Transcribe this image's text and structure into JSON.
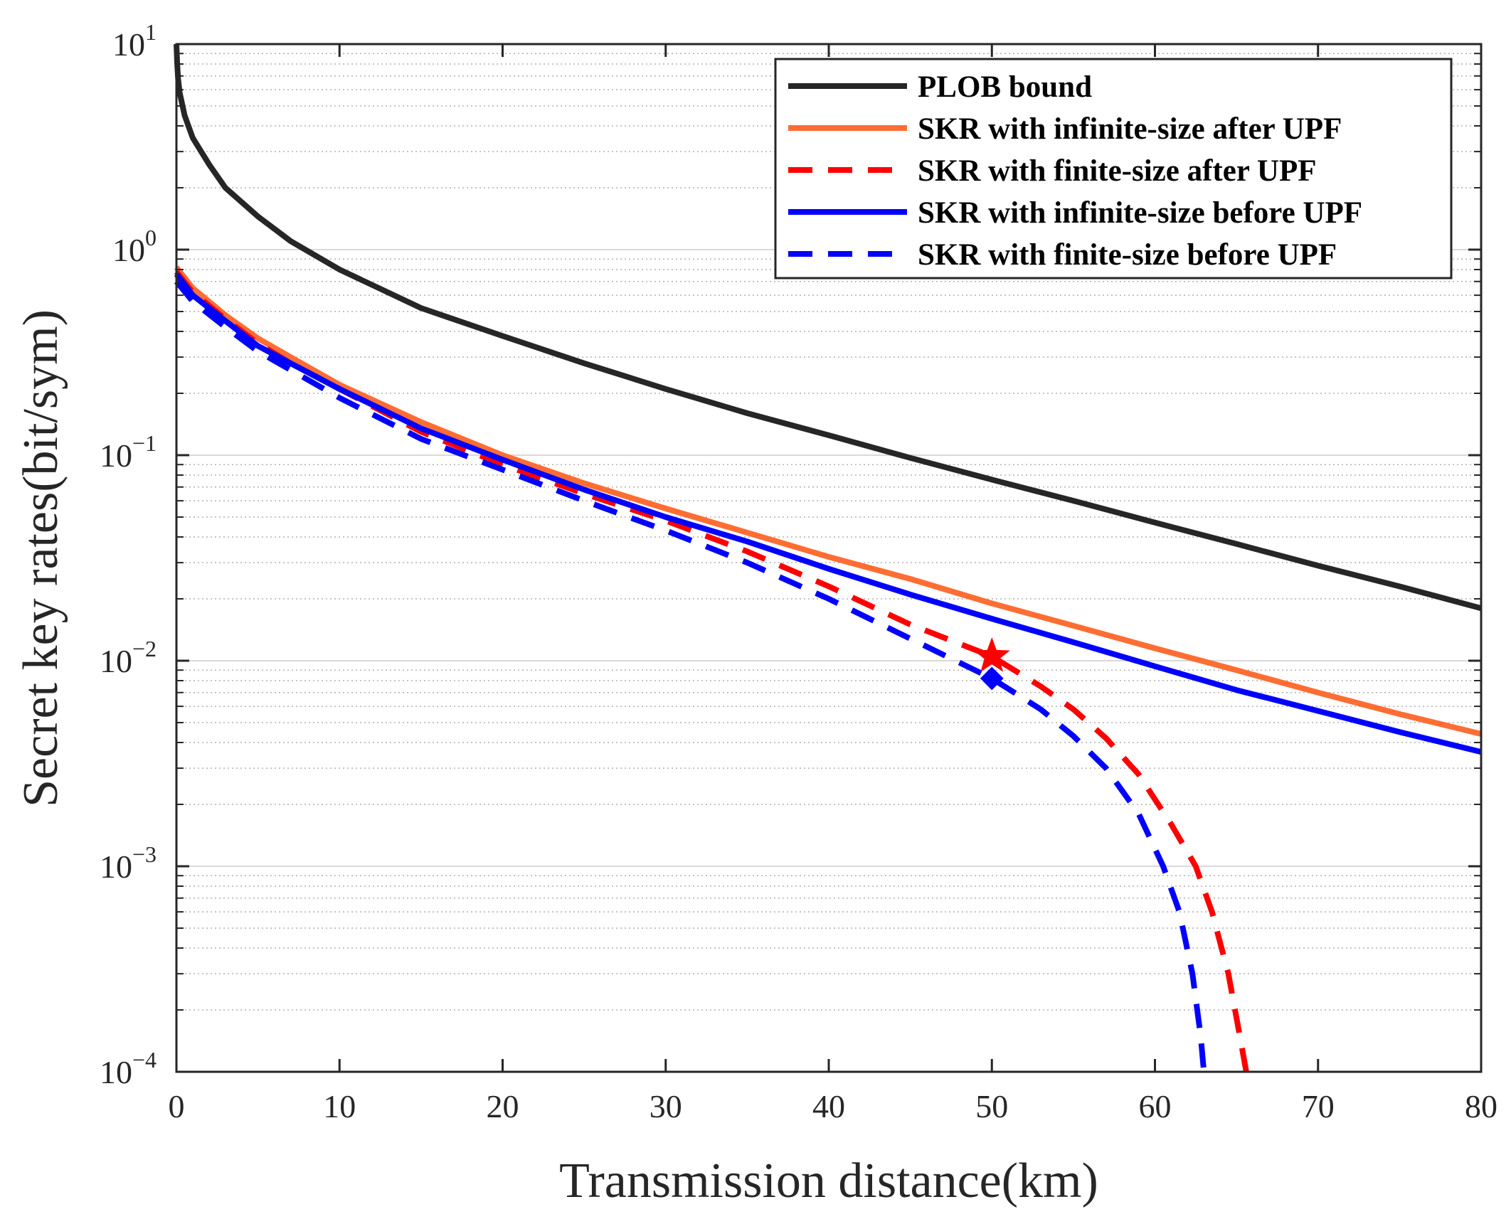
{
  "chart_data": {
    "type": "line",
    "title": "",
    "xlabel": "Transmission distance(km)",
    "ylabel": "Secret key rates(bit/sym)",
    "xlim": [
      0,
      80
    ],
    "ylim": [
      0.0001,
      10
    ],
    "yscale": "log",
    "grid": true,
    "legend_position": "top-right",
    "x_ticks": [
      {
        "value": 0,
        "label": "0"
      },
      {
        "value": 10,
        "label": "10"
      },
      {
        "value": 20,
        "label": "20"
      },
      {
        "value": 30,
        "label": "30"
      },
      {
        "value": 40,
        "label": "40"
      },
      {
        "value": 50,
        "label": "50"
      },
      {
        "value": 60,
        "label": "60"
      },
      {
        "value": 70,
        "label": "70"
      },
      {
        "value": 80,
        "label": "80"
      }
    ],
    "y_ticks": [
      {
        "value": 10,
        "base": "10",
        "exp": "1"
      },
      {
        "value": 1,
        "base": "10",
        "exp": "0"
      },
      {
        "value": 0.1,
        "base": "10",
        "exp": "−1"
      },
      {
        "value": 0.01,
        "base": "10",
        "exp": "−2"
      },
      {
        "value": 0.001,
        "base": "10",
        "exp": "−3"
      },
      {
        "value": 0.0001,
        "base": "10",
        "exp": "−4"
      }
    ],
    "series": [
      {
        "name": "PLOB bound",
        "color": "#262626",
        "dash": "solid",
        "points": [
          [
            0,
            10
          ],
          [
            0.05,
            8.0
          ],
          [
            0.1,
            6.8
          ],
          [
            0.2,
            5.8
          ],
          [
            0.5,
            4.5
          ],
          [
            1,
            3.5
          ],
          [
            2,
            2.6
          ],
          [
            3,
            2.0
          ],
          [
            5,
            1.45
          ],
          [
            7,
            1.1
          ],
          [
            10,
            0.8
          ],
          [
            15,
            0.52
          ],
          [
            20,
            0.38
          ],
          [
            25,
            0.28
          ],
          [
            30,
            0.21
          ],
          [
            35,
            0.16
          ],
          [
            40,
            0.125
          ],
          [
            45,
            0.097
          ],
          [
            50,
            0.076
          ],
          [
            55,
            0.06
          ],
          [
            60,
            0.047
          ],
          [
            65,
            0.037
          ],
          [
            70,
            0.029
          ],
          [
            75,
            0.023
          ],
          [
            80,
            0.018
          ]
        ]
      },
      {
        "name": "SKR with infinite-size after UPF",
        "color": "#ff6d33",
        "dash": "solid",
        "points": [
          [
            0,
            0.82
          ],
          [
            1,
            0.65
          ],
          [
            3,
            0.48
          ],
          [
            5,
            0.37
          ],
          [
            7,
            0.3
          ],
          [
            10,
            0.22
          ],
          [
            15,
            0.145
          ],
          [
            20,
            0.1
          ],
          [
            25,
            0.073
          ],
          [
            30,
            0.055
          ],
          [
            35,
            0.042
          ],
          [
            40,
            0.032
          ],
          [
            45,
            0.025
          ],
          [
            50,
            0.019
          ],
          [
            55,
            0.0148
          ],
          [
            60,
            0.0115
          ],
          [
            65,
            0.009
          ],
          [
            70,
            0.007
          ],
          [
            75,
            0.0055
          ],
          [
            80,
            0.0044
          ]
        ]
      },
      {
        "name": "SKR with finite-size after UPF",
        "color": "#ff0000",
        "dash": "dashed",
        "points": [
          [
            0,
            0.78
          ],
          [
            1,
            0.62
          ],
          [
            3,
            0.46
          ],
          [
            5,
            0.35
          ],
          [
            7,
            0.28
          ],
          [
            10,
            0.21
          ],
          [
            15,
            0.13
          ],
          [
            20,
            0.09
          ],
          [
            25,
            0.065
          ],
          [
            30,
            0.048
          ],
          [
            35,
            0.034
          ],
          [
            40,
            0.023
          ],
          [
            45,
            0.015
          ],
          [
            50,
            0.0105
          ],
          [
            53,
            0.0075
          ],
          [
            55,
            0.0058
          ],
          [
            57,
            0.0042
          ],
          [
            59,
            0.0028
          ],
          [
            61,
            0.0016
          ],
          [
            62.5,
            0.001
          ],
          [
            63.5,
            0.0006
          ],
          [
            64.5,
            0.0003
          ],
          [
            65.2,
            0.00015
          ],
          [
            65.6,
            0.0001
          ]
        ],
        "marker": {
          "x": 50,
          "y": 0.0105,
          "shape": "star"
        }
      },
      {
        "name": "SKR with infinite-size before UPF",
        "color": "#0000ff",
        "dash": "solid",
        "points": [
          [
            0,
            0.76
          ],
          [
            1,
            0.6
          ],
          [
            3,
            0.45
          ],
          [
            5,
            0.34
          ],
          [
            7,
            0.28
          ],
          [
            10,
            0.21
          ],
          [
            15,
            0.135
          ],
          [
            20,
            0.095
          ],
          [
            25,
            0.068
          ],
          [
            30,
            0.05
          ],
          [
            35,
            0.038
          ],
          [
            40,
            0.028
          ],
          [
            45,
            0.021
          ],
          [
            50,
            0.016
          ],
          [
            55,
            0.0123
          ],
          [
            60,
            0.0094
          ],
          [
            65,
            0.0072
          ],
          [
            70,
            0.0057
          ],
          [
            75,
            0.0045
          ],
          [
            80,
            0.0036
          ]
        ]
      },
      {
        "name": "SKR with finite-size before UPF",
        "color": "#0000ff",
        "dash": "dashed",
        "points": [
          [
            0,
            0.7
          ],
          [
            1,
            0.56
          ],
          [
            3,
            0.42
          ],
          [
            5,
            0.32
          ],
          [
            7,
            0.26
          ],
          [
            10,
            0.19
          ],
          [
            15,
            0.12
          ],
          [
            20,
            0.085
          ],
          [
            25,
            0.06
          ],
          [
            30,
            0.043
          ],
          [
            35,
            0.03
          ],
          [
            40,
            0.02
          ],
          [
            45,
            0.0128
          ],
          [
            50,
            0.0082
          ],
          [
            53,
            0.0058
          ],
          [
            55,
            0.0043
          ],
          [
            57,
            0.003
          ],
          [
            59,
            0.0018
          ],
          [
            60.5,
            0.001
          ],
          [
            61.5,
            0.0006
          ],
          [
            62.3,
            0.0003
          ],
          [
            62.8,
            0.00015
          ],
          [
            63,
            0.0001
          ]
        ],
        "marker": {
          "x": 50,
          "y": 0.0082,
          "shape": "diamond"
        }
      }
    ]
  }
}
